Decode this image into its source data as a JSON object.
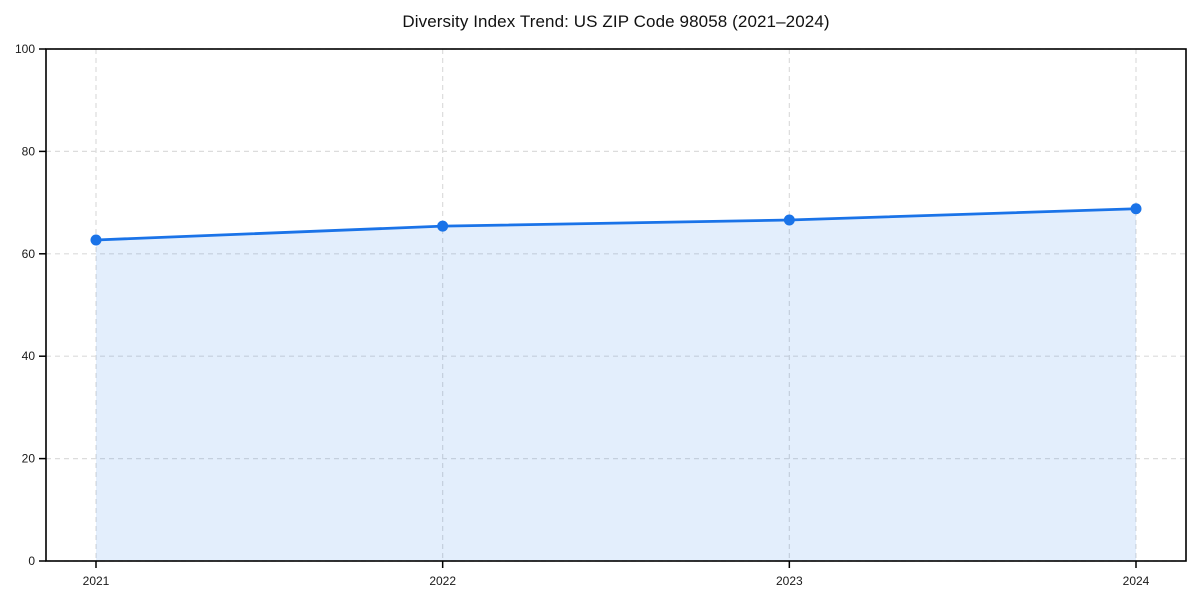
{
  "page": {
    "background": "#ffffff"
  },
  "chart_data": {
    "type": "area",
    "title": "Diversity Index Trend: US ZIP Code 98058 (2021–2024)",
    "categories": [
      "2021",
      "2022",
      "2023",
      "2024"
    ],
    "series": [
      {
        "name": "Diversity Index",
        "values": [
          62.7,
          65.4,
          66.6,
          68.8
        ]
      }
    ],
    "xlabel": "",
    "ylabel": "",
    "ylim": [
      0,
      100
    ],
    "yticks": [
      0,
      20,
      40,
      60,
      80,
      100
    ],
    "grid": true,
    "grid_style": "dashed",
    "legend_position": "none",
    "colors": {
      "line": "#1a73e8",
      "marker": "#1a73e8",
      "area_fill": "rgba(26,115,232,0.12)",
      "gridline": "#dcdcdc",
      "spine": "#000000",
      "tick_label": "#1a1a1a",
      "title": "#111111"
    }
  }
}
